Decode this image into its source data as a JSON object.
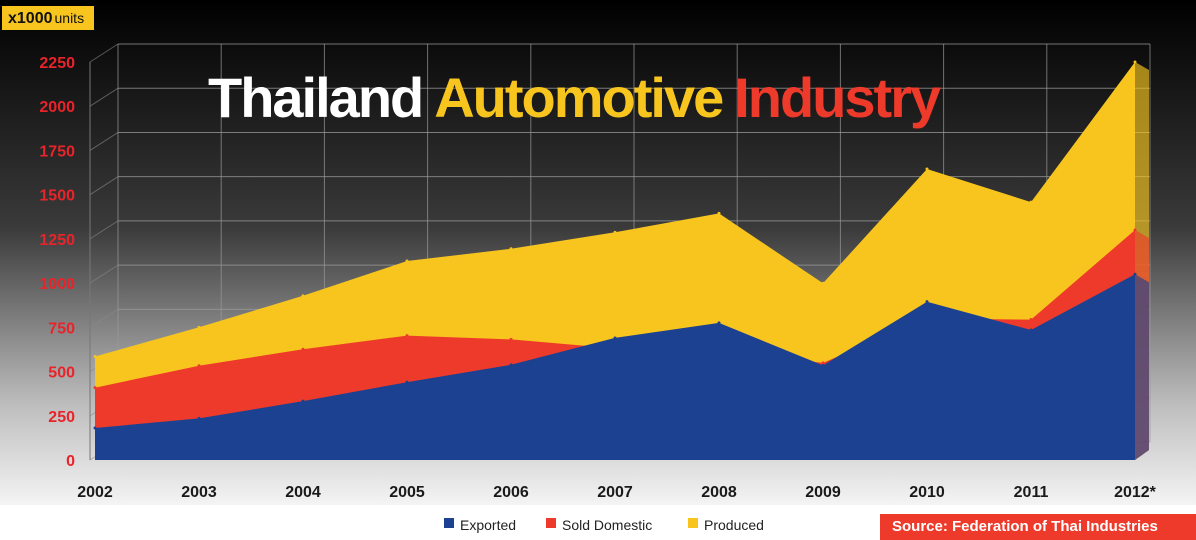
{
  "unit_label_bold": "x1000",
  "unit_label_rest": "units",
  "title_parts": [
    {
      "text": "Thailand",
      "color": "#ffffff"
    },
    {
      "text": "Automotive",
      "color": "#f7c51e"
    },
    {
      "text": "Industry",
      "color": "#ee3a2a"
    }
  ],
  "source": "Source: Federation of Thai Industries",
  "colors": {
    "exported": "#1d4191",
    "sold_domestic": "#ee3a2a",
    "produced": "#f7c51e",
    "y_tick": "#e8242a",
    "background_top": "#000000",
    "background_bottom": "#ffffff"
  },
  "chart_data": {
    "type": "area",
    "stacked": false,
    "title": "Thailand Automotive Industry",
    "y_unit": "x1000 units",
    "x": [
      "2002",
      "2003",
      "2004",
      "2005",
      "2006",
      "2007",
      "2008",
      "2009",
      "2010",
      "2011",
      "2012*"
    ],
    "yticks": [
      "0",
      "250",
      "500",
      "750",
      "1000",
      "1250",
      "1500",
      "1750",
      "2000",
      "2250"
    ],
    "ylim": [
      0,
      2250
    ],
    "grid": true,
    "legend_position": "bottom",
    "series": [
      {
        "name": "Produced",
        "color": "#f7c51e",
        "values": [
          585,
          750,
          928,
          1125,
          1194,
          1287,
          1394,
          999,
          1645,
          1458,
          2250
        ]
      },
      {
        "name": "Sold Domestic",
        "color": "#ee3a2a",
        "values": [
          409,
          533,
          626,
          703,
          682,
          631,
          615,
          549,
          800,
          794,
          1300
        ]
      },
      {
        "name": "Exported",
        "color": "#1d4191",
        "values": [
          181,
          235,
          333,
          440,
          538,
          690,
          775,
          535,
          895,
          735,
          1050
        ]
      }
    ],
    "legend": [
      "Exported",
      "Sold Domestic",
      "Produced"
    ]
  }
}
